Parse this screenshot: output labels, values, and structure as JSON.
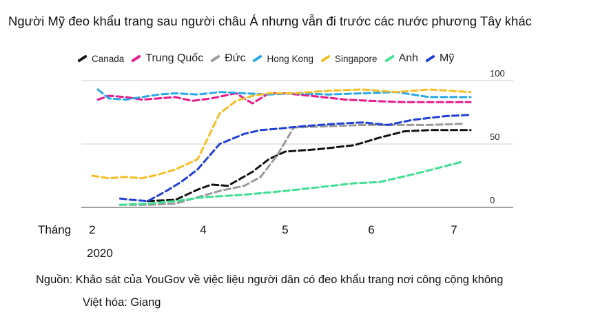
{
  "chart_data": {
    "type": "line",
    "title": "Người Mỹ đeo khẩu trang sau người châu Á nhưng vẫn đi trước các nước phương Tây khác",
    "xlabel": "Tháng",
    "year_label": "2020",
    "ylabel": "",
    "xlim": [
      2,
      7.3
    ],
    "ylim": [
      0,
      100
    ],
    "y_ticks": [
      "100",
      "50",
      "0"
    ],
    "y_tick_values": [
      100,
      50,
      0
    ],
    "x_ticks": [
      "2",
      "4",
      "5",
      "6",
      "7"
    ],
    "x_tick_values": [
      2,
      4,
      5,
      6,
      7
    ],
    "grid": true,
    "legend_position": "top",
    "line_style": "dashed",
    "series": [
      {
        "name": "Canada",
        "color": "#111111",
        "x": [
          3.0,
          3.5,
          3.9,
          4.1,
          4.3,
          4.6,
          4.8,
          5.0,
          5.4,
          5.8,
          6.1,
          6.4,
          6.7,
          7.0,
          7.2
        ],
        "y": [
          5,
          6,
          14,
          18,
          17,
          28,
          38,
          44,
          46,
          49,
          55,
          60,
          61,
          61,
          61
        ]
      },
      {
        "name": "Trung Quốc",
        "color": "#e8198b",
        "x": [
          2.1,
          2.3,
          2.6,
          2.9,
          3.2,
          3.5,
          3.8,
          4.1,
          4.4,
          4.6,
          4.8,
          5.0,
          5.3,
          5.7,
          6.0,
          6.4,
          6.8,
          7.2
        ],
        "y": [
          85,
          88,
          87,
          85,
          86,
          87,
          84,
          86,
          90,
          82,
          90,
          90,
          88,
          85,
          84,
          83,
          83,
          83
        ]
      },
      {
        "name": "Đức",
        "color": "#999999",
        "x": [
          2.5,
          3.0,
          3.5,
          3.9,
          4.2,
          4.5,
          4.7,
          4.9,
          5.1,
          5.5,
          5.9,
          6.3,
          6.7,
          7.1
        ],
        "y": [
          2,
          2,
          3,
          8,
          13,
          17,
          24,
          41,
          63,
          64,
          65,
          65,
          65,
          66
        ]
      },
      {
        "name": "Hong Kong",
        "color": "#28a8e8",
        "x": [
          2.1,
          2.3,
          2.6,
          2.9,
          3.2,
          3.5,
          3.9,
          4.2,
          4.5,
          4.8,
          5.1,
          5.5,
          5.9,
          6.3,
          6.7,
          7.2
        ],
        "y": [
          93,
          86,
          85,
          87,
          89,
          90,
          89,
          91,
          90,
          89,
          90,
          89,
          90,
          91,
          87,
          87
        ]
      },
      {
        "name": "Singapore",
        "color": "#f5be25",
        "x": [
          2.0,
          2.3,
          2.6,
          2.9,
          3.2,
          3.5,
          3.9,
          4.2,
          4.4,
          4.6,
          4.8,
          5.1,
          5.5,
          5.9,
          6.3,
          6.7,
          7.2
        ],
        "y": [
          25,
          23,
          24,
          23,
          26,
          30,
          38,
          74,
          84,
          88,
          90,
          90,
          92,
          93,
          91,
          93,
          91
        ]
      },
      {
        "name": "Anh",
        "color": "#3ee08f",
        "x": [
          2.5,
          3.0,
          3.5,
          4.0,
          4.5,
          5.0,
          5.4,
          5.8,
          6.1,
          6.5,
          6.8,
          7.1
        ],
        "y": [
          2,
          3,
          5,
          8,
          10,
          13,
          16,
          19,
          20,
          26,
          31,
          36
        ]
      },
      {
        "name": "Mỹ",
        "color": "#1f3fd6",
        "x": [
          2.5,
          2.7,
          3.0,
          3.3,
          3.6,
          3.9,
          4.2,
          4.5,
          4.7,
          4.9,
          5.2,
          5.6,
          5.9,
          6.2,
          6.5,
          6.9,
          7.2
        ],
        "y": [
          7,
          6,
          5,
          12,
          20,
          30,
          50,
          58,
          61,
          62,
          64,
          66,
          67,
          65,
          69,
          72,
          73
        ]
      }
    ]
  },
  "source_text": "Nguồn: Khảo sát của YouGov về việc liệu người dân có đeo khẩu trang nơi công cộng không",
  "credit_text": "Việt hóa: Giang"
}
